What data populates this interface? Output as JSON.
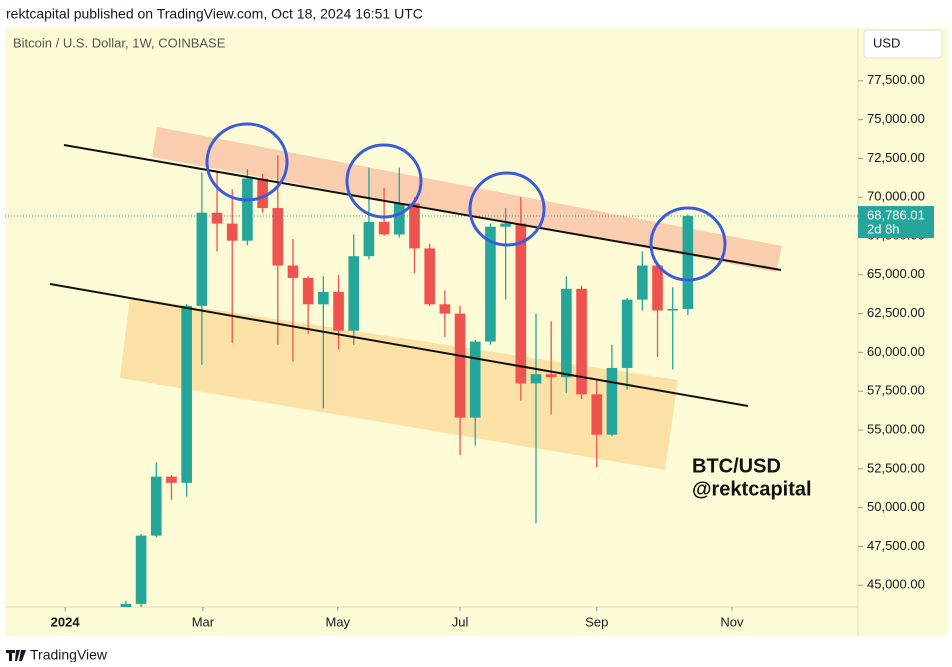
{
  "header": "rektcapital published on TradingView.com, Oct 18, 2024 16:51 UTC",
  "footer": "TradingView",
  "chart_data": {
    "type": "candlestick",
    "title": "Bitcoin / U.S. Dollar, 1W, COINBASE",
    "currency": "USD",
    "annotation": [
      "BTC/USD",
      "@rektcapital"
    ],
    "up_color": "#26a69a",
    "down_color": "#ef5350",
    "open": [
      43600,
      43800,
      48200,
      52000,
      51600,
      63000,
      69000,
      68300,
      67200,
      71200,
      69300,
      65600,
      64800,
      63100,
      63900,
      61400,
      66200,
      68400,
      67600,
      69600,
      66700,
      63100,
      62500,
      55800,
      60700,
      68100,
      68300,
      58000,
      58600,
      58400,
      64100,
      57300,
      54700,
      59000,
      63400,
      65600,
      62700,
      62800
    ],
    "high": [
      44000,
      48300,
      52900,
      52100,
      63100,
      71600,
      71700,
      70500,
      71800,
      71500,
      72700,
      67300,
      64900,
      64900,
      65000,
      67600,
      71900,
      70600,
      71900,
      70000,
      67000,
      64000,
      63000,
      60800,
      68300,
      69300,
      70000,
      62500,
      62000,
      64900,
      64300,
      58300,
      60500,
      63500,
      66500,
      65700,
      64200,
      68900
    ],
    "low": [
      43400,
      43600,
      48100,
      50500,
      50700,
      59200,
      66500,
      60600,
      66900,
      69000,
      60500,
      59400,
      61200,
      56400,
      60200,
      60500,
      66000,
      67500,
      67400,
      65100,
      63000,
      61000,
      53400,
      54000,
      60500,
      63400,
      56900,
      49000,
      56000,
      57400,
      57000,
      52600,
      54600,
      57600,
      62700,
      59700,
      58900,
      62400
    ],
    "close": [
      43800,
      48200,
      52000,
      51600,
      63000,
      69000,
      68300,
      67200,
      71200,
      69300,
      65600,
      64800,
      63100,
      63900,
      61400,
      66200,
      68400,
      67600,
      69600,
      66700,
      63100,
      62500,
      55800,
      60700,
      68100,
      68300,
      58000,
      58600,
      58400,
      64100,
      57300,
      54700,
      59000,
      63400,
      65600,
      62700,
      62800,
      68786.01
    ],
    "xlim": [
      -7.96,
      48.2
    ],
    "xticks": [
      {
        "value": -4.0,
        "label": "2024"
      },
      {
        "value": 5.07,
        "label": "Mar"
      },
      {
        "value": 13.95,
        "label": "May"
      },
      {
        "value": 22.0,
        "label": "Jul"
      },
      {
        "value": 31.0,
        "label": "Sep"
      },
      {
        "value": 39.9,
        "label": "Nov"
      }
    ],
    "ylim": [
      43600,
      80900
    ],
    "yticks": [
      {
        "value": 45000,
        "label": "45,000.00"
      },
      {
        "value": 47500,
        "label": "47,500.00"
      },
      {
        "value": 50000,
        "label": "50,000.00"
      },
      {
        "value": 52500,
        "label": "52,500.00"
      },
      {
        "value": 55000,
        "label": "55,000.00"
      },
      {
        "value": 57500,
        "label": "57,500.00"
      },
      {
        "value": 60000,
        "label": "60,000.00"
      },
      {
        "value": 62500,
        "label": "62,500.00"
      },
      {
        "value": 65000,
        "label": "65,000.00"
      },
      {
        "value": 67500,
        "label": "67,500.00"
      },
      {
        "value": 70000,
        "label": "70,000.00"
      },
      {
        "value": 72500,
        "label": "72,500.00"
      },
      {
        "value": 75000,
        "label": "75,000.00"
      },
      {
        "value": 77500,
        "label": "77,500.00"
      }
    ],
    "last_price": {
      "value": 68786.01,
      "label": "68,786.01"
    },
    "countdown": "2d 8h"
  }
}
